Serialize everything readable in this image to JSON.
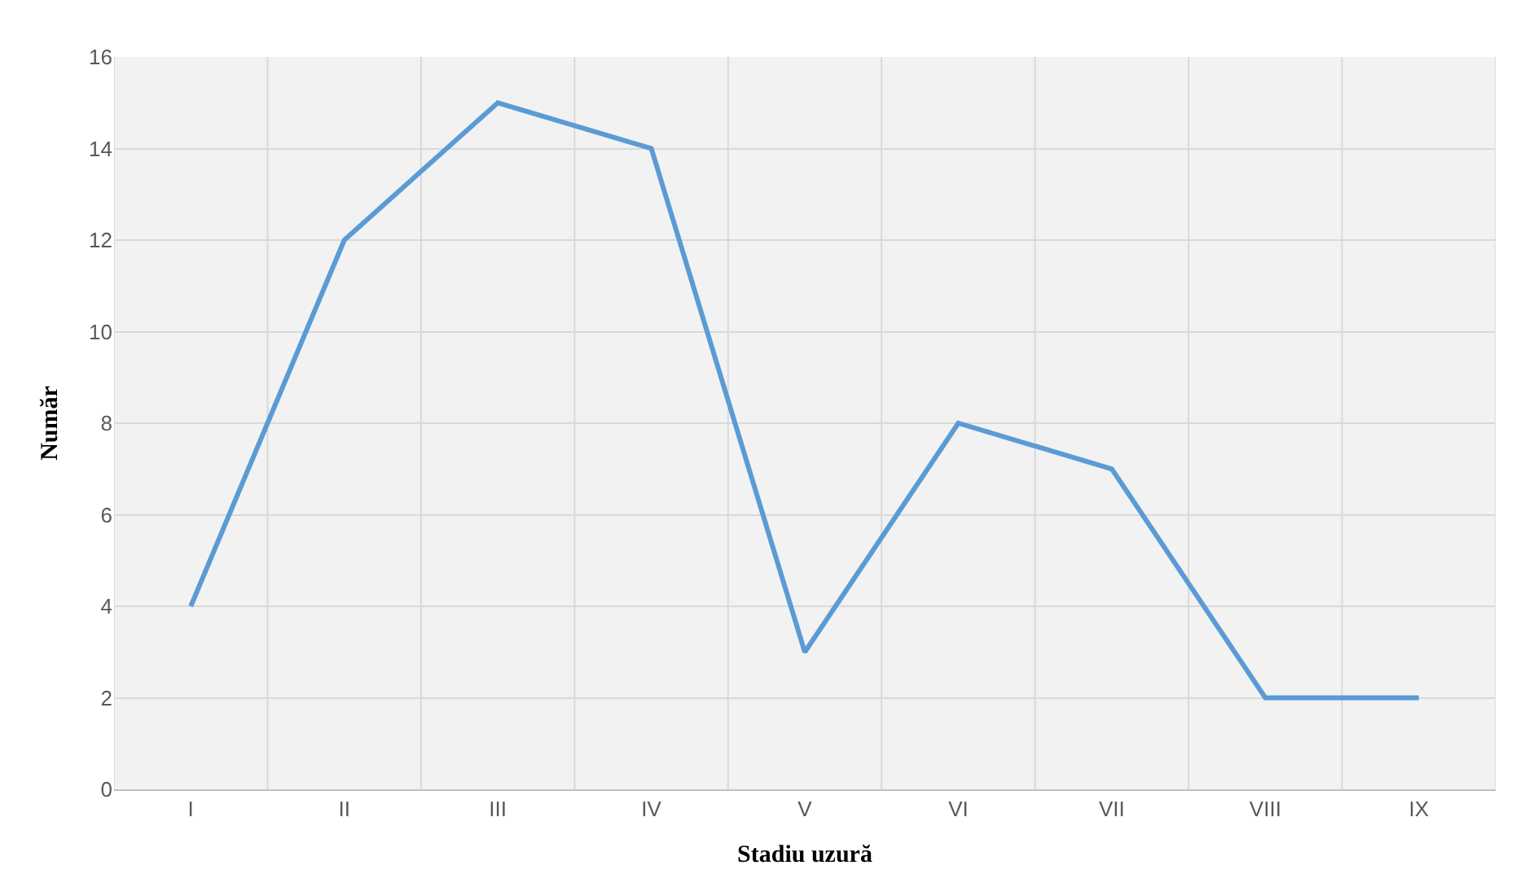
{
  "chart_data": {
    "type": "line",
    "xlabel": "Stadiu uzură",
    "ylabel": "Număr",
    "categories": [
      "I",
      "II",
      "III",
      "IV",
      "V",
      "VI",
      "VII",
      "VIII",
      "IX"
    ],
    "series": [
      {
        "color": "#5b9bd5",
        "values": [
          4,
          12,
          15,
          14,
          3,
          8,
          7,
          2,
          2
        ]
      }
    ],
    "ylim": [
      0,
      16
    ],
    "yticks": [
      0,
      2,
      4,
      6,
      8,
      10,
      12,
      14,
      16
    ],
    "grid": true,
    "marker": "none",
    "line_style": "solid",
    "legend": false
  }
}
